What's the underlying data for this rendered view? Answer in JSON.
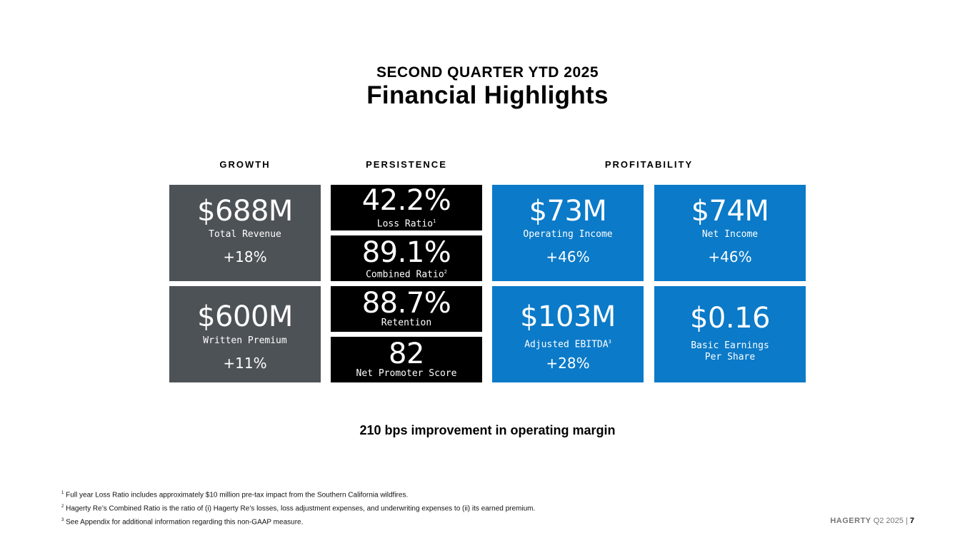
{
  "header": {
    "subtitle": "SECOND QUARTER YTD 2025",
    "title": "Financial Highlights"
  },
  "columns": {
    "growth": "GROWTH",
    "persistence": "PERSISTENCE",
    "profitability": "PROFITABILITY"
  },
  "growth": {
    "revenue": {
      "value": "$688M",
      "label": "Total Revenue",
      "change": "+18%"
    },
    "premium": {
      "value": "$600M",
      "label": "Written Premium",
      "change": "+11%"
    }
  },
  "persistence": {
    "loss_ratio": {
      "value": "42.2%",
      "label": "Loss Ratio",
      "sup": "1"
    },
    "combined_ratio": {
      "value": "89.1%",
      "label": "Combined Ratio",
      "sup": "2"
    },
    "retention": {
      "value": "88.7%",
      "label": "Retention"
    },
    "nps": {
      "value": "82",
      "label": "Net Promoter Score"
    }
  },
  "profitability": {
    "operating_income": {
      "value": "$73M",
      "label": "Operating Income",
      "change": "+46%"
    },
    "net_income": {
      "value": "$74M",
      "label": "Net Income",
      "change": "+46%"
    },
    "ebitda": {
      "value": "$103M",
      "label": "Adjusted EBITDA",
      "sup": "3",
      "change": "+28%"
    },
    "eps": {
      "value": "$0.16",
      "label_line1": "Basic Earnings",
      "label_line2": "Per Share"
    }
  },
  "bottom_line": "210 bps improvement in operating margin",
  "footnotes": [
    {
      "num": "1",
      "text": "Full year Loss Ratio includes approximately $10 million pre-tax impact from the Southern California wildfires."
    },
    {
      "num": "2",
      "text": "Hagerty Re’s Combined Ratio is the ratio of (i) Hagerty Re’s losses, loss adjustment expenses, and underwriting expenses to (ii) its earned premium."
    },
    {
      "num": "3",
      "text": "See Appendix for additional information regarding this non-GAAP measure."
    }
  ],
  "footer": {
    "brand": "HAGERTY",
    "period": "Q2 2025",
    "separator": "|",
    "page": "7"
  },
  "colors": {
    "gray_tile": "#4d5257",
    "black_tile": "#000000",
    "blue_tile": "#0b7ac8"
  }
}
